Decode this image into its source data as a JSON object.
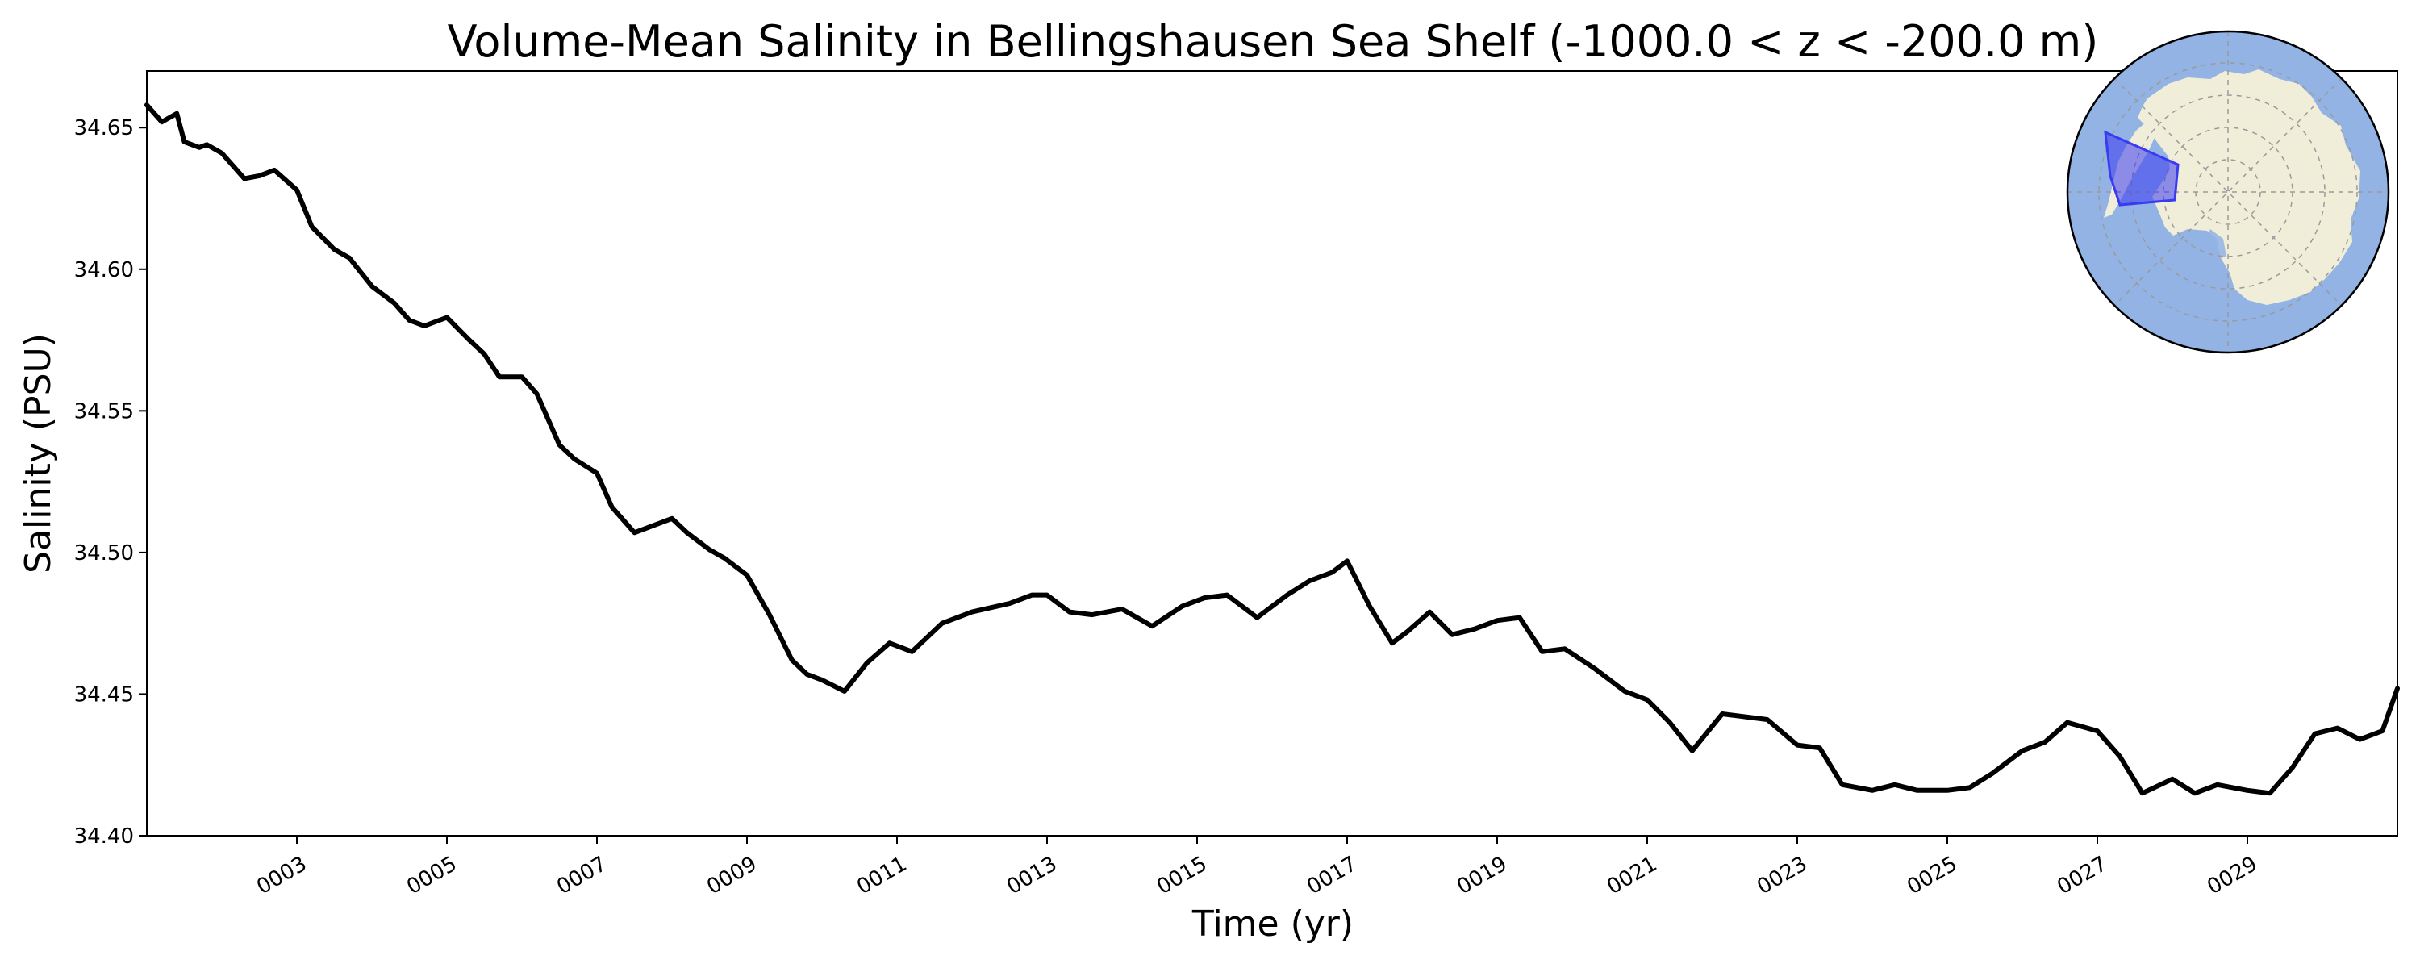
{
  "chart_data": {
    "type": "line",
    "title": "Volume-Mean Salinity in Bellingshausen Sea Shelf (-1000.0 < z < -200.0 m)",
    "xlabel": "Time (yr)",
    "ylabel": "Salinity (PSU)",
    "xlim": [
      1.0,
      31.0
    ],
    "ylim": [
      34.4,
      34.67
    ],
    "yticks": [
      34.4,
      34.45,
      34.5,
      34.55,
      34.6,
      34.65
    ],
    "ytick_labels": [
      "34.40",
      "34.45",
      "34.50",
      "34.55",
      "34.60",
      "34.65"
    ],
    "xticks": [
      3,
      5,
      7,
      9,
      11,
      13,
      15,
      17,
      19,
      21,
      23,
      25,
      27,
      29
    ],
    "xtick_labels": [
      "0003",
      "0005",
      "0007",
      "0009",
      "0011",
      "0013",
      "0015",
      "0017",
      "0019",
      "0021",
      "0023",
      "0025",
      "0027",
      "0029"
    ],
    "grid": false,
    "series": [
      {
        "name": "Volume-mean salinity",
        "color": "#000000",
        "x": [
          1.0,
          1.2,
          1.4,
          1.5,
          1.7,
          1.8,
          2.0,
          2.3,
          2.5,
          2.7,
          3.0,
          3.2,
          3.5,
          3.7,
          4.0,
          4.3,
          4.5,
          4.7,
          5.0,
          5.3,
          5.5,
          5.7,
          6.0,
          6.2,
          6.5,
          6.7,
          7.0,
          7.2,
          7.5,
          7.7,
          8.0,
          8.2,
          8.5,
          8.7,
          9.0,
          9.3,
          9.6,
          9.8,
          10.0,
          10.3,
          10.6,
          10.9,
          11.2,
          11.6,
          12.0,
          12.5,
          12.8,
          13.0,
          13.3,
          13.6,
          14.0,
          14.4,
          14.8,
          15.1,
          15.4,
          15.8,
          16.2,
          16.5,
          16.8,
          17.0,
          17.3,
          17.6,
          17.8,
          18.1,
          18.4,
          18.7,
          19.0,
          19.3,
          19.6,
          19.9,
          20.3,
          20.7,
          21.0,
          21.3,
          21.6,
          22.0,
          22.3,
          22.6,
          23.0,
          23.3,
          23.6,
          24.0,
          24.3,
          24.6,
          25.0,
          25.3,
          25.6,
          26.0,
          26.3,
          26.6,
          27.0,
          27.3,
          27.6,
          28.0,
          28.3,
          28.6,
          29.0,
          29.3,
          29.6,
          29.9,
          30.2,
          30.5,
          30.8,
          31.0
        ],
        "y": [
          34.658,
          34.652,
          34.655,
          34.645,
          34.643,
          34.644,
          34.641,
          34.632,
          34.633,
          34.635,
          34.628,
          34.615,
          34.607,
          34.604,
          34.594,
          34.588,
          34.582,
          34.58,
          34.583,
          34.575,
          34.57,
          34.562,
          34.562,
          34.556,
          34.538,
          34.533,
          34.528,
          34.516,
          34.507,
          34.509,
          34.512,
          34.507,
          34.501,
          34.498,
          34.492,
          34.478,
          34.462,
          34.457,
          34.455,
          34.451,
          34.461,
          34.468,
          34.465,
          34.475,
          34.479,
          34.482,
          34.485,
          34.485,
          34.479,
          34.478,
          34.48,
          34.474,
          34.481,
          34.484,
          34.485,
          34.477,
          34.485,
          34.49,
          34.493,
          34.497,
          34.481,
          34.468,
          34.472,
          34.479,
          34.471,
          34.473,
          34.476,
          34.477,
          34.465,
          34.466,
          34.459,
          34.451,
          34.448,
          34.44,
          34.43,
          34.443,
          34.442,
          34.441,
          34.432,
          34.431,
          34.418,
          34.416,
          34.418,
          34.416,
          34.416,
          34.417,
          34.422,
          34.43,
          34.433,
          34.44,
          34.437,
          34.428,
          34.415,
          34.42,
          34.415,
          34.418,
          34.416,
          34.415,
          34.424,
          34.436,
          34.438,
          34.434,
          34.437,
          34.452
        ]
      }
    ],
    "inset_map": {
      "description_label": "Antarctica polar projection with Bellingshausen Sea region highlighted",
      "ocean_color": "#93b3e4",
      "land_color": "#f0eed9",
      "region_color": "#3a3af0"
    }
  }
}
